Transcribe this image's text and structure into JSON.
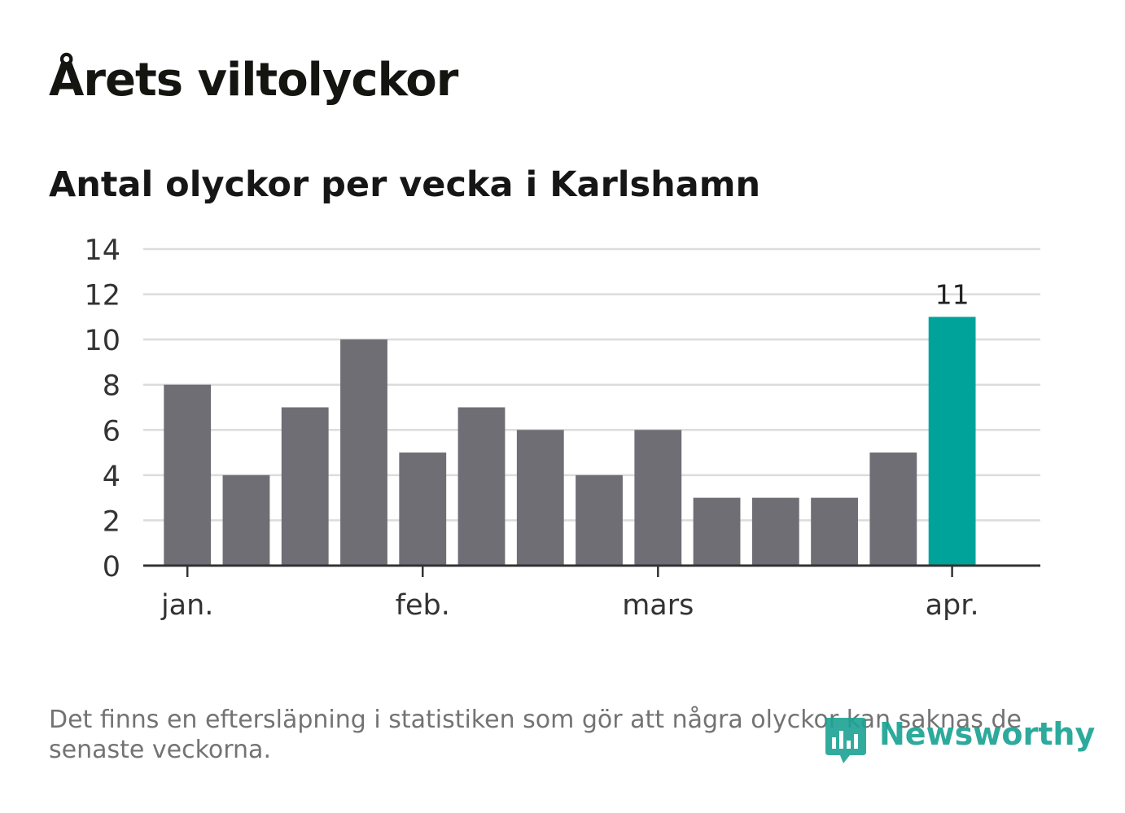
{
  "title": "Årets viltolyckor",
  "subtitle": "Antal olyckor per vecka i Karlshamn",
  "footnote": "Det finns en eftersläpning i statistiken som gör att några olyckor kan saknas de senaste veckorna.",
  "logo": {
    "text": "Newsworthy",
    "icon": "newsworthy-chart-icon"
  },
  "colors": {
    "bar": "#6f6e74",
    "highlight": "#00a39a",
    "grid": "#dcdcdc",
    "axis": "#333333"
  },
  "chart_data": {
    "type": "bar",
    "values": [
      8,
      4,
      7,
      10,
      5,
      7,
      6,
      4,
      6,
      3,
      3,
      3,
      5,
      11
    ],
    "highlight_index": 13,
    "highlight_label": "11",
    "ylim": [
      0,
      14
    ],
    "yticks": [
      "0",
      "2",
      "4",
      "6",
      "8",
      "10",
      "12",
      "14"
    ],
    "xticks": [
      {
        "label": "jan.",
        "position": 0
      },
      {
        "label": "feb.",
        "position": 4
      },
      {
        "label": "mars",
        "position": 8
      },
      {
        "label": "apr.",
        "position": 13
      }
    ],
    "grid": true
  }
}
